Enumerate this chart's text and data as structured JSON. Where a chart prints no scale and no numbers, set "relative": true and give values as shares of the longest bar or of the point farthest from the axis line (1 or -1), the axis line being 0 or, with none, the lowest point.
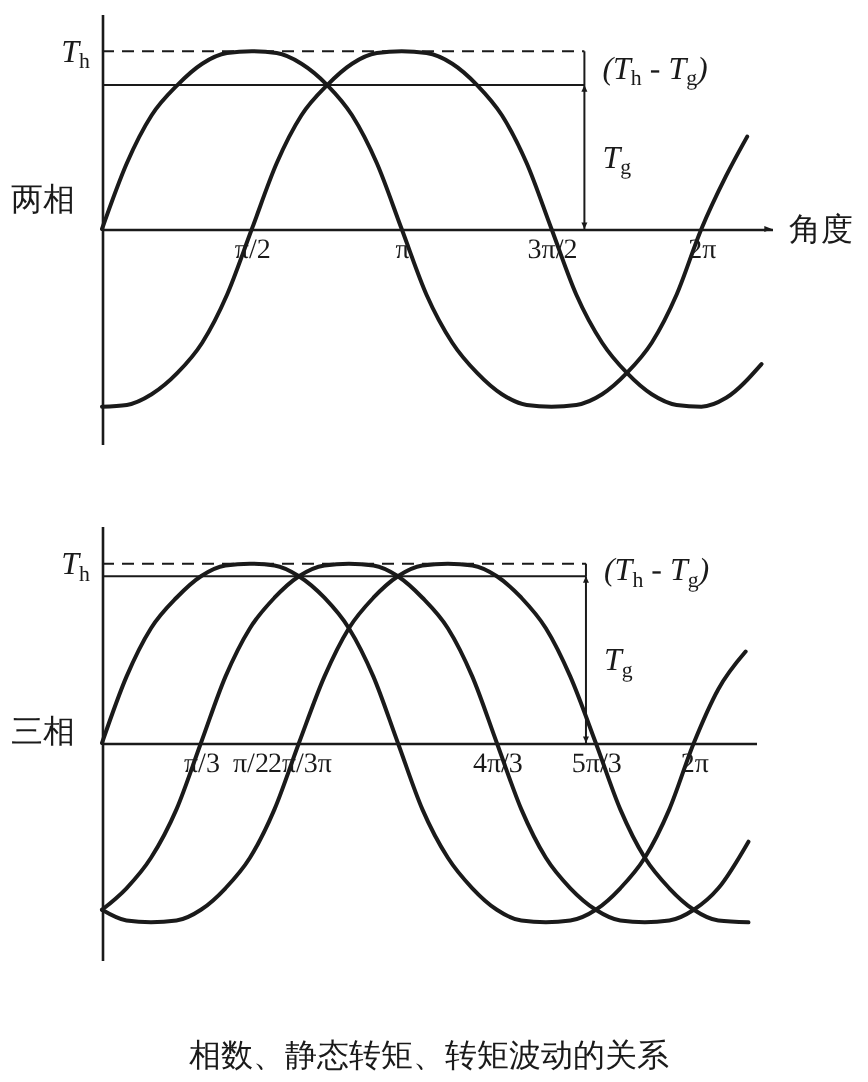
{
  "chart_data": [
    {
      "type": "line",
      "relative": true,
      "ylabel": "两相",
      "xlabel": "角度",
      "tick_labels": "x",
      "xlim": [
        0,
        7.02
      ],
      "xticks": [
        {
          "value": 1.57,
          "label": "π/2"
        },
        {
          "value": 3.14,
          "label": "π"
        },
        {
          "value": 4.71,
          "label": "3π/2"
        },
        {
          "value": 6.28,
          "label": "2π"
        }
      ],
      "series": [
        {
          "color": "#1a1a1a",
          "x": [
            0,
            0.26,
            0.52,
            0.79,
            1.05,
            1.31,
            1.57,
            1.83,
            2.09,
            2.36,
            2.62,
            2.88,
            3.14,
            3.4,
            3.67,
            3.93,
            4.19,
            4.45,
            4.71,
            4.97,
            5.24,
            5.5,
            5.76,
            6.02,
            6.28,
            6.54,
            6.76
          ],
          "values": [
            0,
            0.37,
            0.64,
            0.81,
            0.93,
            0.99,
            1,
            0.99,
            0.93,
            0.81,
            0.64,
            0.37,
            0,
            -0.37,
            -0.64,
            -0.81,
            -0.93,
            -0.99,
            -1,
            -0.99,
            -0.93,
            -0.81,
            -0.64,
            -0.37,
            0,
            0.3,
            0.52
          ]
        },
        {
          "color": "#1a1a1a",
          "x": [
            0,
            0.26,
            0.52,
            0.79,
            1.05,
            1.31,
            1.57,
            1.83,
            2.09,
            2.36,
            2.62,
            2.88,
            3.14,
            3.4,
            3.67,
            3.93,
            4.19,
            4.45,
            4.71,
            4.97,
            5.24,
            5.5,
            5.76,
            6.02,
            6.28,
            6.54,
            6.91
          ],
          "values": [
            -1,
            -0.99,
            -0.93,
            -0.81,
            -0.64,
            -0.37,
            0,
            0.37,
            0.64,
            0.81,
            0.93,
            0.99,
            1,
            0.99,
            0.93,
            0.81,
            0.64,
            0.37,
            0,
            -0.37,
            -0.64,
            -0.81,
            -0.93,
            -0.99,
            -1,
            -0.95,
            -0.76
          ]
        }
      ],
      "ref_lines": [
        {
          "axis": "y",
          "value": 1,
          "label": "T$_{h}$",
          "line_style": "dashed"
        },
        {
          "axis": "y",
          "value": 0.81
        }
      ],
      "annotations": [
        "T$_{g}$",
        "(T$_{h}$ - T$_{g}$)"
      ]
    },
    {
      "type": "line",
      "relative": true,
      "ylabel": "三相",
      "tick_labels": "x",
      "xlim": [
        0,
        6.94
      ],
      "xticks": [
        {
          "value": 1.05,
          "label": "π/3"
        },
        {
          "value": 1.57,
          "label": "π/2"
        },
        {
          "value": 2.09,
          "label": "2π/3π"
        },
        {
          "value": 4.19,
          "label": "4π/3"
        },
        {
          "value": 5.24,
          "label": "5π/3"
        },
        {
          "value": 6.28,
          "label": "2π"
        }
      ],
      "series": [
        {
          "color": "#1a1a1a",
          "x": [
            0,
            0.26,
            0.52,
            0.79,
            1.05,
            1.31,
            1.57,
            1.83,
            2.09,
            2.36,
            2.62,
            2.88,
            3.14,
            3.4,
            3.67,
            3.93,
            4.19,
            4.45,
            4.71,
            4.97,
            5.24,
            5.5,
            5.76,
            6.02,
            6.28,
            6.54,
            6.83
          ],
          "values": [
            0,
            0.37,
            0.64,
            0.81,
            0.93,
            0.99,
            1,
            0.99,
            0.93,
            0.81,
            0.64,
            0.37,
            0,
            -0.37,
            -0.64,
            -0.81,
            -0.93,
            -0.99,
            -1,
            -0.99,
            -0.93,
            -0.81,
            -0.64,
            -0.37,
            0,
            0.3,
            0.51
          ]
        },
        {
          "color": "#1a1a1a",
          "x": [
            0,
            0.26,
            0.52,
            0.79,
            1.05,
            1.31,
            1.57,
            1.83,
            2.09,
            2.36,
            2.62,
            2.88,
            3.14,
            3.4,
            3.67,
            3.93,
            4.19,
            4.45,
            4.71,
            4.97,
            5.24,
            5.5,
            5.76,
            6.02,
            6.28,
            6.54,
            6.86
          ],
          "values": [
            -0.93,
            -0.81,
            -0.64,
            -0.37,
            0,
            0.37,
            0.64,
            0.81,
            0.93,
            0.99,
            1,
            0.99,
            0.93,
            0.81,
            0.64,
            0.37,
            0,
            -0.37,
            -0.64,
            -0.81,
            -0.93,
            -0.99,
            -1,
            -0.99,
            -0.93,
            -0.81,
            -0.55
          ]
        },
        {
          "color": "#1a1a1a",
          "x": [
            0,
            0.26,
            0.52,
            0.79,
            1.05,
            1.31,
            1.57,
            1.83,
            2.09,
            2.36,
            2.62,
            2.88,
            3.14,
            3.4,
            3.67,
            3.93,
            4.19,
            4.45,
            4.71,
            4.97,
            5.24,
            5.5,
            5.76,
            6.02,
            6.28,
            6.54,
            6.86
          ],
          "values": [
            -0.93,
            -0.99,
            -1,
            -0.99,
            -0.93,
            -0.81,
            -0.64,
            -0.37,
            0,
            0.37,
            0.64,
            0.81,
            0.93,
            0.99,
            1,
            0.99,
            0.93,
            0.81,
            0.64,
            0.37,
            0,
            -0.37,
            -0.64,
            -0.81,
            -0.93,
            -0.99,
            -1
          ]
        }
      ],
      "ref_lines": [
        {
          "axis": "y",
          "value": 1,
          "label": "T$_{h}$",
          "line_style": "dashed"
        },
        {
          "axis": "y",
          "value": 0.93
        }
      ],
      "annotations": [
        "T$_{g}$",
        "(T$_{h}$ - T$_{g}$)",
        "相数、静态转矩、转矩波动的关系"
      ]
    }
  ]
}
